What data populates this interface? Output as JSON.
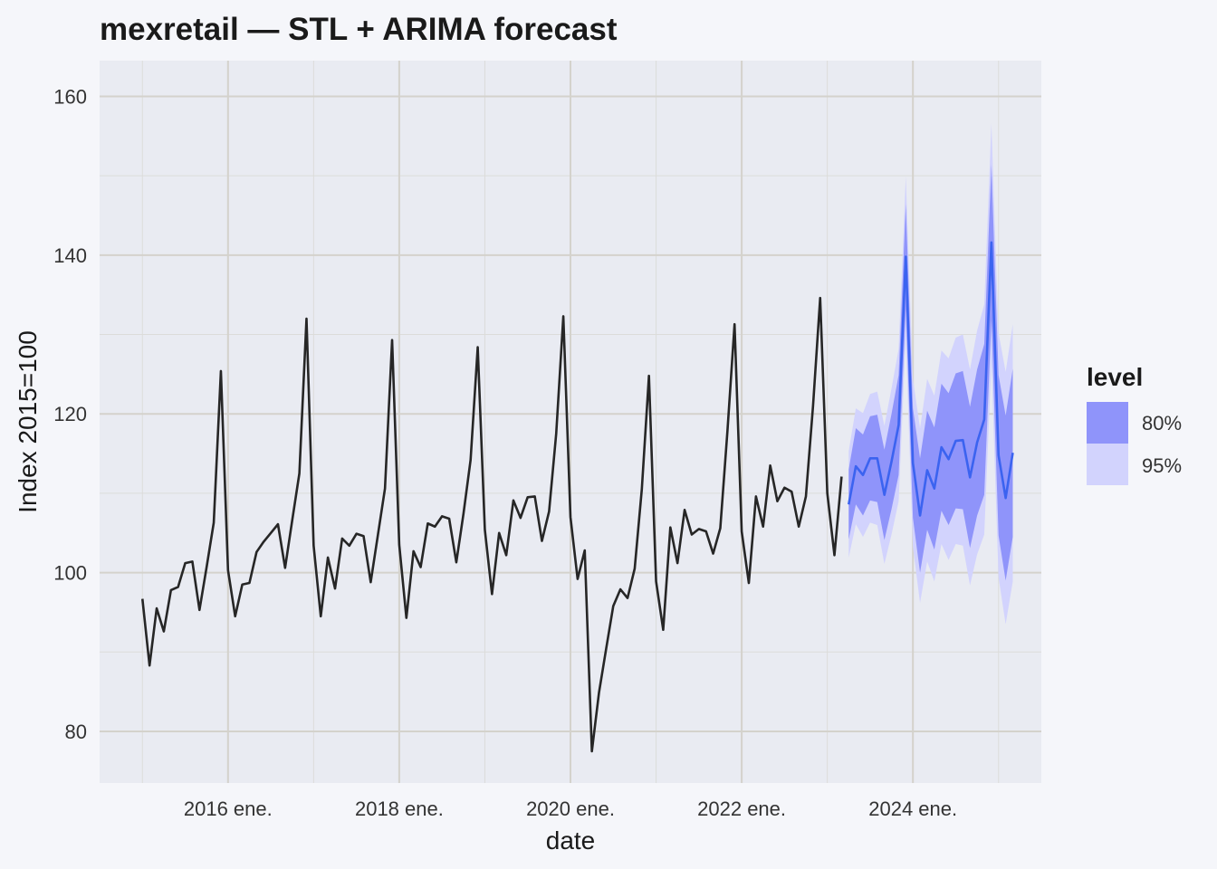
{
  "chart_data": {
    "type": "line",
    "title": "mexretail — STL + ARIMA forecast",
    "xlabel": "date",
    "ylabel": "Index 2015=100",
    "x_ticks": [
      "2016 ene.",
      "2018 ene.",
      "2020 ene.",
      "2022 ene.",
      "2024 ene."
    ],
    "x_tick_years": [
      2016,
      2018,
      2020,
      2022,
      2024
    ],
    "xlim": [
      "2014-07",
      "2025-07"
    ],
    "y_ticks": [
      80,
      100,
      120,
      140,
      160
    ],
    "ylim": [
      73.5,
      164.5
    ],
    "grid": true,
    "legend": {
      "title": "level",
      "position": "right",
      "entries": [
        {
          "label": "80%",
          "color": "#8f94fa"
        },
        {
          "label": "95%",
          "color": "#d2d3fd"
        }
      ]
    },
    "colors": {
      "history_line": "#262626",
      "forecast_line": "#3b63f0",
      "band_80": "#8f94fa",
      "band_95": "#d2d3fd",
      "panel_background": "#e9ebf2",
      "page_background": "#f5f6fa",
      "grid_major": "#d4d2cc",
      "grid_minor": "#dcdcda"
    },
    "history": {
      "start": "2015-01",
      "values": [
        96.7,
        88.3,
        95.5,
        92.6,
        97.8,
        98.2,
        101.2,
        101.4,
        95.3,
        100.7,
        106.3,
        125.4,
        100.3,
        94.5,
        98.5,
        98.7,
        102.6,
        103.9,
        105.0,
        106.1,
        100.6,
        106.6,
        112.5,
        132.0,
        103.4,
        94.5,
        101.9,
        98.0,
        104.3,
        103.4,
        104.9,
        104.6,
        98.8,
        104.7,
        110.6,
        129.3,
        103.5,
        94.3,
        102.7,
        100.7,
        106.2,
        105.8,
        107.1,
        106.8,
        101.3,
        107.4,
        114.2,
        128.4,
        105.4,
        97.3,
        105.0,
        102.2,
        109.1,
        106.9,
        109.5,
        109.6,
        104.0,
        107.7,
        117.5,
        132.3,
        107.0,
        99.2,
        102.8,
        77.5,
        84.9,
        90.4,
        95.8,
        97.9,
        96.8,
        100.5,
        110.5,
        124.8,
        98.9,
        92.8,
        105.7,
        101.2,
        107.9,
        104.8,
        105.5,
        105.2,
        102.4,
        105.6,
        117.8,
        131.3,
        105.2,
        98.7,
        109.6,
        105.8,
        113.5,
        109.0,
        110.7,
        110.2,
        105.8,
        109.6,
        121.0,
        134.6,
        110.0,
        102.2,
        112.1
      ]
    },
    "forecast": {
      "start": "2023-04",
      "mean": [
        108.6,
        113.4,
        112.3,
        114.4,
        114.4,
        109.8,
        114.0,
        118.6,
        139.8,
        113.8,
        107.2,
        112.9,
        110.6,
        115.8,
        114.3,
        116.6,
        116.7,
        112.0,
        116.4,
        119.3,
        141.6,
        114.8,
        109.4,
        115.1
      ],
      "lo80": [
        104.2,
        108.6,
        107.2,
        109.1,
        108.9,
        104.1,
        108.0,
        112.3,
        133.2,
        106.9,
        100.0,
        105.4,
        102.9,
        107.8,
        106.0,
        108.1,
        108.0,
        103.1,
        107.2,
        109.8,
        131.8,
        104.7,
        99.0,
        104.5
      ],
      "hi80": [
        113.0,
        118.2,
        117.4,
        119.7,
        119.9,
        115.5,
        120.0,
        124.9,
        146.4,
        120.7,
        114.4,
        120.4,
        118.3,
        123.8,
        122.6,
        125.1,
        125.4,
        120.9,
        125.6,
        128.8,
        151.4,
        124.9,
        119.8,
        125.7
      ],
      "lo95": [
        101.9,
        106.1,
        104.5,
        106.3,
        106.0,
        101.1,
        104.8,
        109.0,
        129.7,
        103.2,
        96.2,
        101.4,
        98.9,
        103.6,
        101.6,
        103.6,
        103.4,
        98.4,
        102.3,
        104.8,
        126.6,
        99.4,
        93.5,
        98.9
      ],
      "hi95": [
        115.3,
        120.7,
        120.1,
        122.5,
        122.8,
        118.5,
        123.2,
        128.2,
        149.9,
        124.4,
        118.2,
        124.4,
        122.3,
        128.0,
        127.0,
        129.6,
        130.0,
        125.6,
        130.5,
        133.8,
        156.6,
        130.2,
        125.3,
        131.3
      ]
    }
  }
}
